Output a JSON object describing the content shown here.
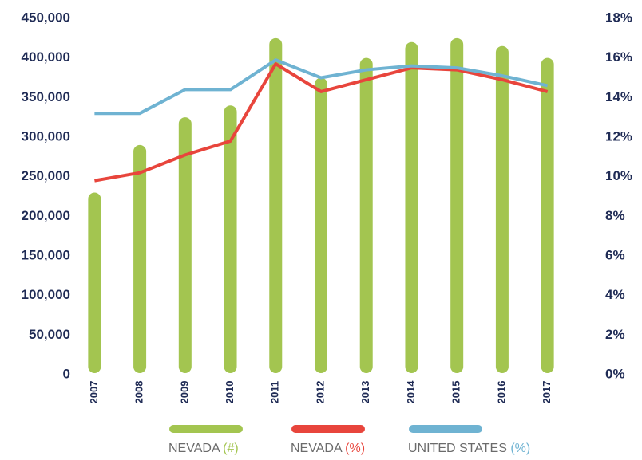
{
  "chart_data": {
    "type": "bar_line",
    "categories": [
      "2007",
      "2008",
      "2009",
      "2010",
      "2011",
      "2012",
      "2013",
      "2014",
      "2015",
      "2016",
      "2017"
    ],
    "series": [
      {
        "name": "NEVADA (#)",
        "color": "#a3c550",
        "axis": "y",
        "type": "bar",
        "values": [
          230000,
          290000,
          325000,
          340000,
          425000,
          375000,
          400000,
          420000,
          425000,
          415000,
          400000
        ]
      },
      {
        "name": "NEVADA (%)",
        "color": "#e8453c",
        "axis": "y2",
        "type": "line",
        "values": [
          9.8,
          10.2,
          11.1,
          11.8,
          15.7,
          14.3,
          14.9,
          15.5,
          15.4,
          14.9,
          14.3
        ]
      },
      {
        "name": "UNITED STATES (%)",
        "color": "#6fb3d2",
        "axis": "y2",
        "type": "line",
        "values": [
          13.2,
          13.2,
          14.4,
          14.4,
          15.9,
          15.0,
          15.4,
          15.6,
          15.5,
          15.1,
          14.6
        ]
      }
    ],
    "ylim": [
      0,
      450000
    ],
    "yticks": [
      0,
      {
        "value": 50000,
        "label": "50,000"
      },
      {
        "value": 100000,
        "label": "100,000"
      },
      {
        "value": 150000,
        "label": "150,000"
      },
      {
        "value": 200000,
        "label": "200,000"
      },
      {
        "value": 250000,
        "label": "250,000"
      },
      {
        "value": 300000,
        "label": "300,000"
      },
      {
        "value": 350000,
        "label": "350,000"
      },
      {
        "value": 400000,
        "label": "400,000"
      },
      {
        "value": 450000,
        "label": "450,000"
      }
    ],
    "y2lim": [
      0,
      18
    ],
    "y2ticks": [
      {
        "value": 0,
        "label": "0%"
      },
      {
        "value": 2,
        "label": "2%"
      },
      {
        "value": 4,
        "label": "4%"
      },
      {
        "value": 6,
        "label": "6%"
      },
      {
        "value": 8,
        "label": "8%"
      },
      {
        "value": 10,
        "label": "10%"
      },
      {
        "value": 12,
        "label": "12%"
      },
      {
        "value": 14,
        "label": "14%"
      },
      {
        "value": 16,
        "label": "16%"
      },
      {
        "value": 18,
        "label": "18%"
      }
    ],
    "grid": false,
    "legend": "bottom"
  }
}
